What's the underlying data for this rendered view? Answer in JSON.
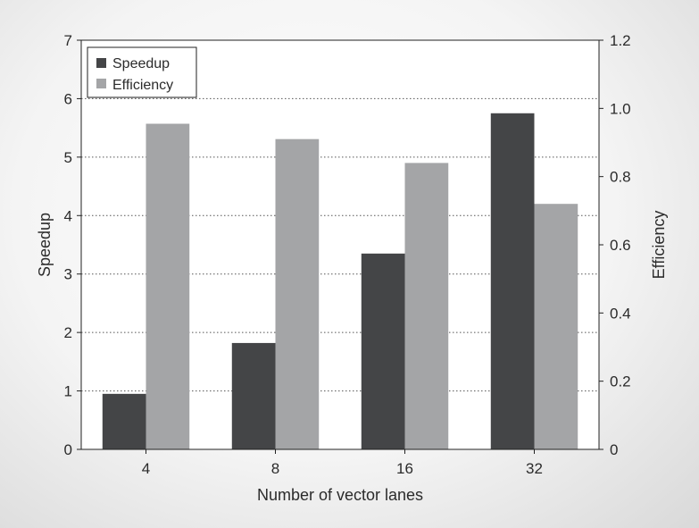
{
  "chart_data": {
    "type": "bar",
    "categories": [
      "4",
      "8",
      "16",
      "32"
    ],
    "series": [
      {
        "name": "Speedup",
        "axis": "left",
        "color": "#444547",
        "values": [
          0.95,
          1.82,
          3.35,
          5.75
        ]
      },
      {
        "name": "Efficiency",
        "axis": "right",
        "color": "#a4a5a7",
        "values": [
          0.955,
          0.91,
          0.84,
          0.72
        ]
      }
    ],
    "xlabel": "Number of vector lanes",
    "ylabel": "Speedup",
    "ylabel_right": "Efficiency",
    "ylim": [
      0,
      7
    ],
    "ylim_right": [
      0,
      1.2
    ],
    "yticks": [
      "0",
      "1",
      "2",
      "3",
      "4",
      "5",
      "6",
      "7"
    ],
    "yticks_right": [
      "0",
      "0.2",
      "0.4",
      "0.6",
      "0.8",
      "1.0",
      "1.2"
    ],
    "grid": "horizontal dotted",
    "legend_position": "top-left"
  }
}
